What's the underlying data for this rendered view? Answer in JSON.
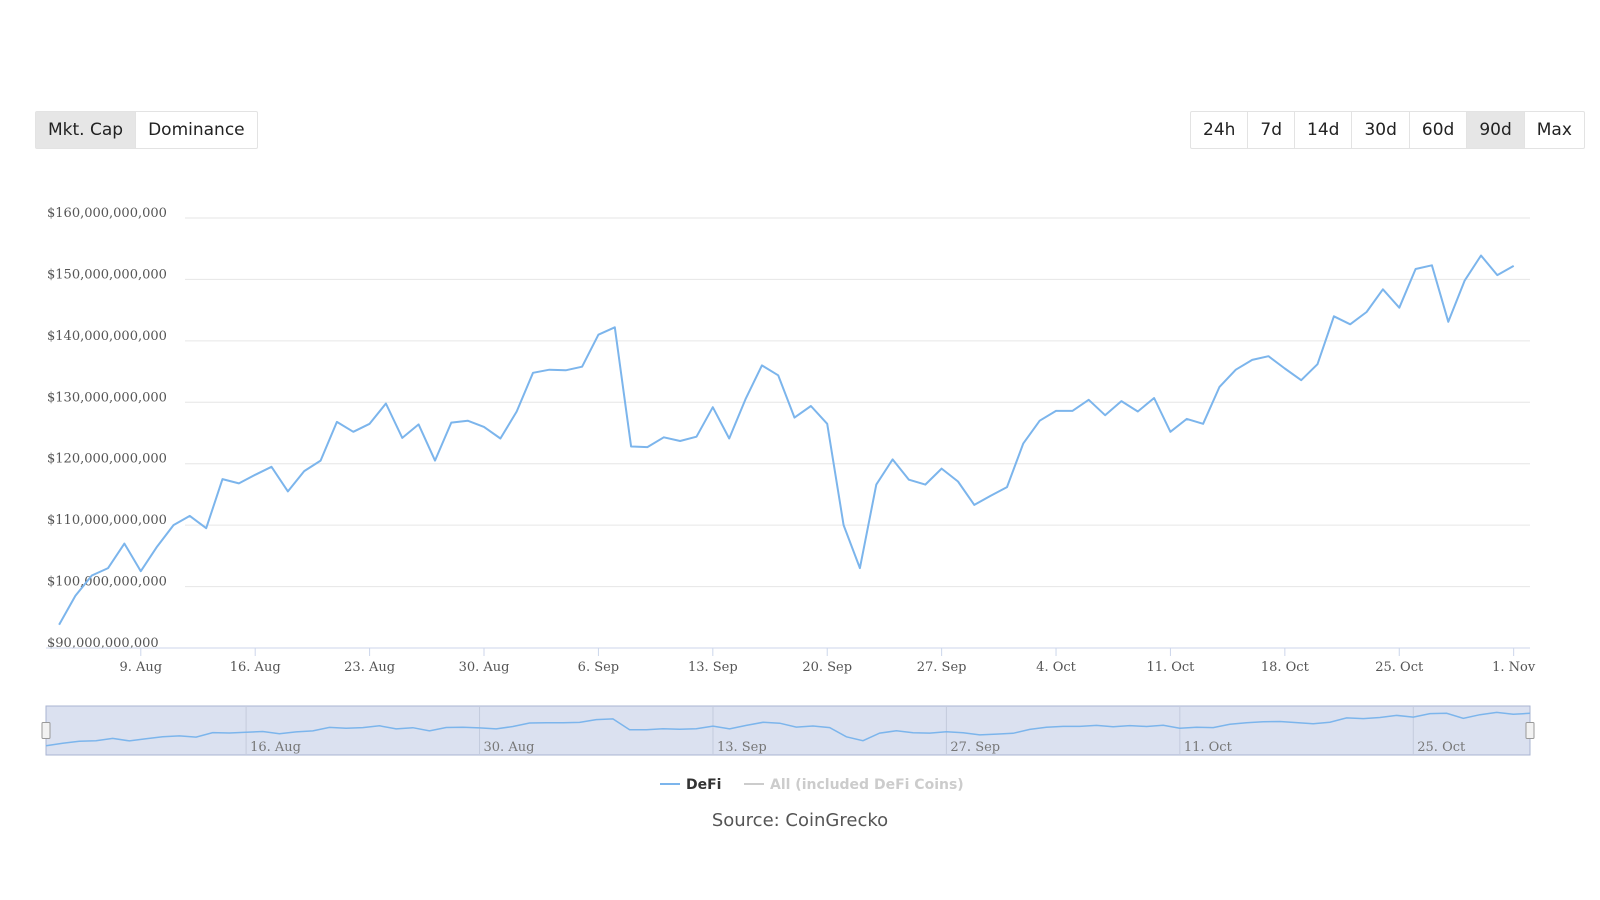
{
  "toolbar": {
    "metric_tabs": [
      {
        "label": "Mkt. Cap",
        "active": true
      },
      {
        "label": "Dominance",
        "active": false
      }
    ],
    "range_tabs": [
      {
        "label": "24h",
        "active": false
      },
      {
        "label": "7d",
        "active": false
      },
      {
        "label": "14d",
        "active": false
      },
      {
        "label": "30d",
        "active": false
      },
      {
        "label": "60d",
        "active": false
      },
      {
        "label": "90d",
        "active": true
      },
      {
        "label": "Max",
        "active": false
      }
    ]
  },
  "source": "Source: CoinGrecko",
  "colors": {
    "line": "#7cb5ec",
    "navigator_fill": "#dbe1f0",
    "grid": "#e6e6e6",
    "legend_inactive": "#cccccc"
  },
  "chart_data": {
    "type": "line",
    "title": "",
    "xlabel": "",
    "ylabel": "",
    "ylim": [
      90000000000,
      160000000000
    ],
    "y_ticks": [
      {
        "value": 160000000000,
        "label": "$160,000,000,000"
      },
      {
        "value": 150000000000,
        "label": "$150,000,000,000"
      },
      {
        "value": 140000000000,
        "label": "$140,000,000,000"
      },
      {
        "value": 130000000000,
        "label": "$130,000,000,000"
      },
      {
        "value": 120000000000,
        "label": "$120,000,000,000"
      },
      {
        "value": 110000000000,
        "label": "$110,000,000,000"
      },
      {
        "value": 100000000000,
        "label": "$100,000,000,000"
      },
      {
        "value": 90000000000,
        "label": "$90,000,000,000"
      }
    ],
    "x_domain_days": [
      -5.8,
      85
    ],
    "x_ticks": [
      {
        "day": 0,
        "label": "9. Aug"
      },
      {
        "day": 7,
        "label": "16. Aug"
      },
      {
        "day": 14,
        "label": "23. Aug"
      },
      {
        "day": 21,
        "label": "30. Aug"
      },
      {
        "day": 28,
        "label": "6. Sep"
      },
      {
        "day": 35,
        "label": "13. Sep"
      },
      {
        "day": 42,
        "label": "20. Sep"
      },
      {
        "day": 49,
        "label": "27. Sep"
      },
      {
        "day": 56,
        "label": "4. Oct"
      },
      {
        "day": 63,
        "label": "11. Oct"
      },
      {
        "day": 70,
        "label": "18. Oct"
      },
      {
        "day": 77,
        "label": "25. Oct"
      },
      {
        "day": 84,
        "label": "1. Nov"
      }
    ],
    "navigator_ticks": [
      {
        "day": 7,
        "label": "16. Aug"
      },
      {
        "day": 21,
        "label": "30. Aug"
      },
      {
        "day": 35,
        "label": "13. Sep"
      },
      {
        "day": 49,
        "label": "27. Sep"
      },
      {
        "day": 63,
        "label": "11. Oct"
      },
      {
        "day": 77,
        "label": "25. Oct"
      }
    ],
    "series": [
      {
        "name": "DeFi",
        "active": true,
        "x": [
          -5,
          -4,
          -3,
          -2,
          -1,
          0,
          1,
          2,
          3,
          4,
          5,
          6,
          7,
          8,
          9,
          10,
          11,
          12,
          13,
          14,
          15,
          16,
          17,
          18,
          19,
          20,
          21,
          22,
          23,
          24,
          25,
          26,
          27,
          28,
          29,
          30,
          31,
          32,
          33,
          34,
          35,
          36,
          37,
          38,
          39,
          40,
          41,
          42,
          43,
          44,
          45,
          46,
          47,
          48,
          49,
          50,
          51,
          52,
          53,
          54,
          55,
          56,
          57,
          58,
          59,
          60,
          61,
          62,
          63,
          64,
          65,
          66,
          67,
          68,
          69,
          70,
          71,
          72,
          73,
          74,
          75,
          76,
          77,
          78,
          79,
          80,
          81,
          82,
          83,
          84
        ],
        "values": [
          93800000000,
          98500000000,
          101800000000,
          103000000000,
          107000000000,
          102500000000,
          106500000000,
          110000000000,
          111500000000,
          109500000000,
          117500000000,
          116800000000,
          118200000000,
          119500000000,
          115500000000,
          118800000000,
          120500000000,
          126800000000,
          125200000000,
          126500000000,
          129800000000,
          124200000000,
          126400000000,
          120500000000,
          126700000000,
          127000000000,
          126000000000,
          124100000000,
          128500000000,
          134800000000,
          135300000000,
          135200000000,
          135800000000,
          141000000000,
          142200000000,
          122800000000,
          122700000000,
          124300000000,
          123700000000,
          124400000000,
          129200000000,
          124100000000,
          130500000000,
          136000000000,
          134400000000,
          127500000000,
          129400000000,
          126500000000,
          110000000000,
          103000000000,
          116600000000,
          120700000000,
          117400000000,
          116600000000,
          119200000000,
          117100000000,
          113300000000,
          114800000000,
          116200000000,
          123300000000,
          127000000000,
          128600000000,
          128600000000,
          130400000000,
          127900000000,
          130200000000,
          128500000000,
          130700000000,
          125200000000,
          127300000000,
          126500000000,
          132500000000,
          135300000000,
          136900000000,
          137500000000,
          135500000000,
          133600000000,
          136200000000,
          144000000000,
          142700000000,
          144700000000,
          148400000000,
          145400000000,
          151700000000,
          152300000000,
          143100000000,
          149800000000,
          153900000000,
          150700000000,
          152200000000
        ]
      },
      {
        "name": "All (included DeFi Coins)",
        "active": false
      }
    ]
  }
}
